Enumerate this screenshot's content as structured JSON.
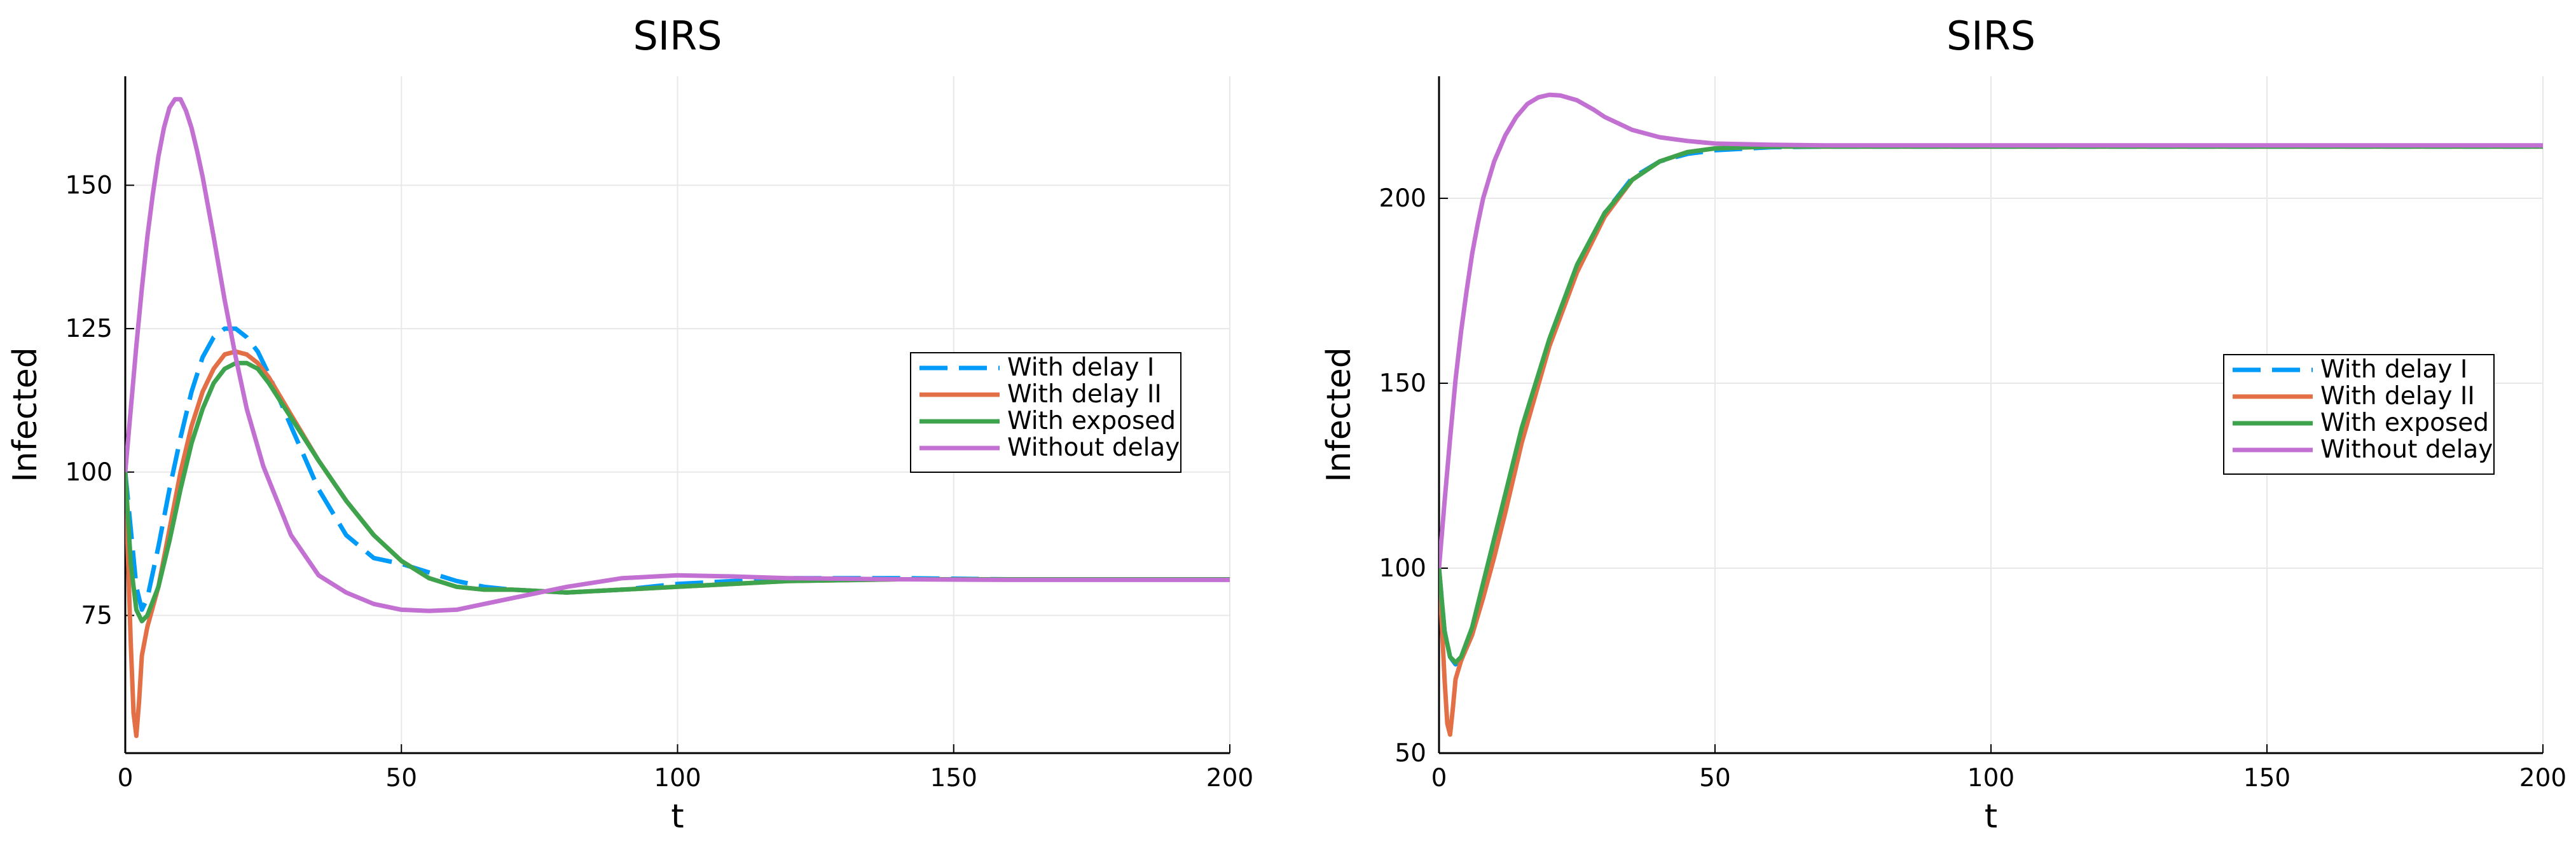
{
  "chart_data": [
    {
      "type": "line",
      "title": "SIRS",
      "xlabel": "t",
      "ylabel": "Infected",
      "xlim": [
        0,
        200
      ],
      "ylim": [
        51,
        169
      ],
      "xticks": [
        0,
        50,
        100,
        150,
        200
      ],
      "yticks": [
        75,
        100,
        125,
        150
      ],
      "grid": true,
      "legend_position": "right",
      "series": [
        {
          "name": "With  delay I",
          "color": "#009af9",
          "dash": "dashed",
          "x": [
            0,
            1,
            2,
            3,
            4,
            6,
            8,
            10,
            12,
            14,
            16,
            18,
            20,
            22,
            24,
            26,
            30,
            35,
            40,
            45,
            50,
            55,
            60,
            65,
            70,
            80,
            90,
            100,
            120,
            140,
            160,
            180,
            200
          ],
          "y": [
            100,
            90,
            80,
            76,
            78,
            87,
            97,
            106,
            114,
            120,
            123.5,
            125,
            125,
            123.5,
            121,
            117,
            108,
            97,
            89,
            85,
            84,
            82.5,
            81,
            80,
            79.5,
            79,
            79.5,
            80.5,
            81.5,
            81.5,
            81.3,
            81.3,
            81.3
          ]
        },
        {
          "name": "With  delay II",
          "color": "#e26f46",
          "dash": "solid",
          "x": [
            0,
            0.5,
            1,
            1.5,
            2,
            2.5,
            3,
            4,
            6,
            8,
            10,
            12,
            14,
            16,
            18,
            20,
            22,
            24,
            26,
            30,
            35,
            40,
            45,
            50,
            55,
            60,
            65,
            70,
            80,
            90,
            100,
            120,
            140,
            160,
            180,
            200
          ],
          "y": [
            100,
            85,
            70,
            58,
            54,
            60,
            68,
            73,
            80,
            90,
            100,
            108,
            114,
            118,
            120.5,
            121,
            120.5,
            119,
            116.5,
            110,
            102,
            95,
            89,
            84.5,
            81.5,
            80,
            79.5,
            79.5,
            79,
            79.5,
            80,
            81,
            81.3,
            81.3,
            81.3,
            81.3
          ]
        },
        {
          "name": "With exposed",
          "color": "#3da44d",
          "dash": "solid",
          "x": [
            0,
            1,
            2,
            3,
            4,
            6,
            8,
            10,
            12,
            14,
            16,
            18,
            20,
            22,
            24,
            26,
            30,
            35,
            40,
            45,
            50,
            55,
            60,
            65,
            70,
            80,
            90,
            100,
            120,
            140,
            160,
            180,
            200
          ],
          "y": [
            100,
            84,
            76,
            74,
            75,
            80,
            88,
            97,
            105,
            111,
            115.5,
            118,
            119,
            119,
            118,
            115.5,
            109.5,
            102,
            95,
            89,
            84.5,
            81.5,
            80,
            79.5,
            79.5,
            79,
            79.5,
            80,
            81,
            81.3,
            81.3,
            81.3,
            81.3
          ]
        },
        {
          "name": "Without delay",
          "color": "#c271d2",
          "dash": "solid",
          "x": [
            0,
            1,
            2,
            3,
            4,
            5,
            6,
            7,
            8,
            9,
            10,
            11,
            12,
            13,
            14,
            16,
            18,
            20,
            22,
            25,
            30,
            35,
            40,
            45,
            50,
            55,
            60,
            65,
            70,
            80,
            90,
            100,
            110,
            120,
            140,
            160,
            180,
            200
          ],
          "y": [
            100,
            111,
            122,
            132,
            141,
            148.5,
            155,
            160,
            163.5,
            165,
            165,
            163,
            160,
            156,
            151.5,
            141,
            130,
            120,
            111,
            101,
            89,
            82,
            79,
            77,
            76,
            75.8,
            76,
            77,
            78,
            80,
            81.5,
            82,
            81.8,
            81.5,
            81.3,
            81.2,
            81.2,
            81.2
          ]
        }
      ]
    },
    {
      "type": "line",
      "title": "SIRS",
      "xlabel": "t",
      "ylabel": "Infected",
      "xlim": [
        0,
        200
      ],
      "ylim": [
        50,
        233
      ],
      "xticks": [
        0,
        50,
        100,
        150,
        200
      ],
      "yticks": [
        50,
        100,
        150,
        200
      ],
      "grid": true,
      "legend_position": "right",
      "series": [
        {
          "name": "With  delay I",
          "color": "#009af9",
          "dash": "dashed",
          "x": [
            0,
            1,
            2,
            3,
            4,
            6,
            8,
            10,
            12,
            15,
            20,
            25,
            30,
            35,
            40,
            45,
            50,
            60,
            70,
            80,
            100,
            120,
            140,
            160,
            180,
            200
          ],
          "y": [
            100,
            83,
            76,
            74,
            75,
            82,
            93,
            105,
            118,
            136,
            161,
            181,
            196,
            205.5,
            210,
            212,
            213,
            213.8,
            214,
            214,
            214,
            214,
            214,
            214,
            214,
            214
          ]
        },
        {
          "name": "With  delay II",
          "color": "#e26f46",
          "dash": "solid",
          "x": [
            0,
            0.5,
            1,
            1.5,
            2,
            2.5,
            3,
            4,
            6,
            8,
            10,
            12,
            15,
            20,
            25,
            30,
            35,
            40,
            45,
            50,
            60,
            70,
            80,
            100,
            120,
            140,
            160,
            180,
            200
          ],
          "y": [
            100,
            85,
            70,
            58,
            55,
            62,
            70,
            75,
            82,
            92,
            103,
            115,
            134,
            160,
            180,
            195,
            205,
            210,
            212.5,
            213.5,
            214,
            214,
            214,
            214,
            214,
            214,
            214,
            214,
            214
          ]
        },
        {
          "name": "With exposed",
          "color": "#3da44d",
          "dash": "solid",
          "x": [
            0,
            1,
            2,
            3,
            4,
            6,
            8,
            10,
            12,
            15,
            20,
            25,
            30,
            35,
            40,
            45,
            50,
            60,
            70,
            80,
            100,
            120,
            140,
            160,
            180,
            200
          ],
          "y": [
            100,
            83,
            76,
            74.5,
            76,
            84,
            96,
            108,
            120,
            138,
            162,
            182,
            196,
            205,
            210,
            212.5,
            213.5,
            214,
            214,
            214,
            214,
            214,
            214,
            214,
            214,
            214
          ]
        },
        {
          "name": "Without delay",
          "color": "#c271d2",
          "dash": "solid",
          "x": [
            0,
            1,
            2,
            3,
            4,
            5,
            6,
            7,
            8,
            10,
            12,
            14,
            16,
            18,
            20,
            22,
            25,
            28,
            30,
            35,
            40,
            45,
            50,
            60,
            70,
            80,
            100,
            120,
            140,
            160,
            180,
            200
          ],
          "y": [
            100,
            118,
            135,
            151,
            164,
            175,
            185,
            193,
            200,
            210,
            217,
            222,
            225.5,
            227.3,
            228,
            227.8,
            226.5,
            224,
            222,
            218.5,
            216.5,
            215.5,
            214.8,
            214.5,
            214.3,
            214.3,
            214.3,
            214.3,
            214.3,
            214.3,
            214.3,
            214.3
          ]
        }
      ]
    }
  ]
}
